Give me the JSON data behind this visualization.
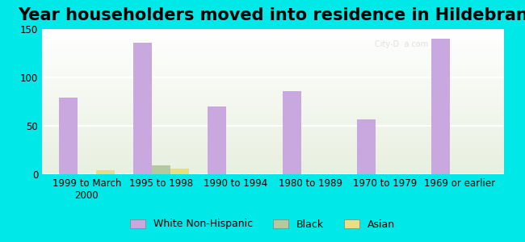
{
  "title": "Year householders moved into residence in Hildebran",
  "categories": [
    "1999 to March\n2000",
    "1995 to 1998",
    "1990 to 1994",
    "1980 to 1989",
    "1970 to 1979",
    "1969 or earlier"
  ],
  "white_non_hispanic": [
    79,
    136,
    70,
    86,
    57,
    140
  ],
  "black": [
    0,
    9,
    0,
    0,
    0,
    0
  ],
  "asian": [
    4,
    6,
    0,
    0,
    0,
    0
  ],
  "bar_colors": {
    "white_non_hispanic": "#c9a8e0",
    "black": "#b5c9a0",
    "asian": "#e8e080"
  },
  "ylim": [
    0,
    150
  ],
  "yticks": [
    0,
    50,
    100,
    150
  ],
  "background_color": "#00e8e8",
  "plot_bg_color_top": "#ffffff",
  "plot_bg_color_bottom": "#e8f0e0",
  "grid_color": "#ffffff",
  "legend_labels": [
    "White Non-Hispanic",
    "Black",
    "Asian"
  ],
  "title_fontsize": 15,
  "tick_fontsize": 8.5
}
